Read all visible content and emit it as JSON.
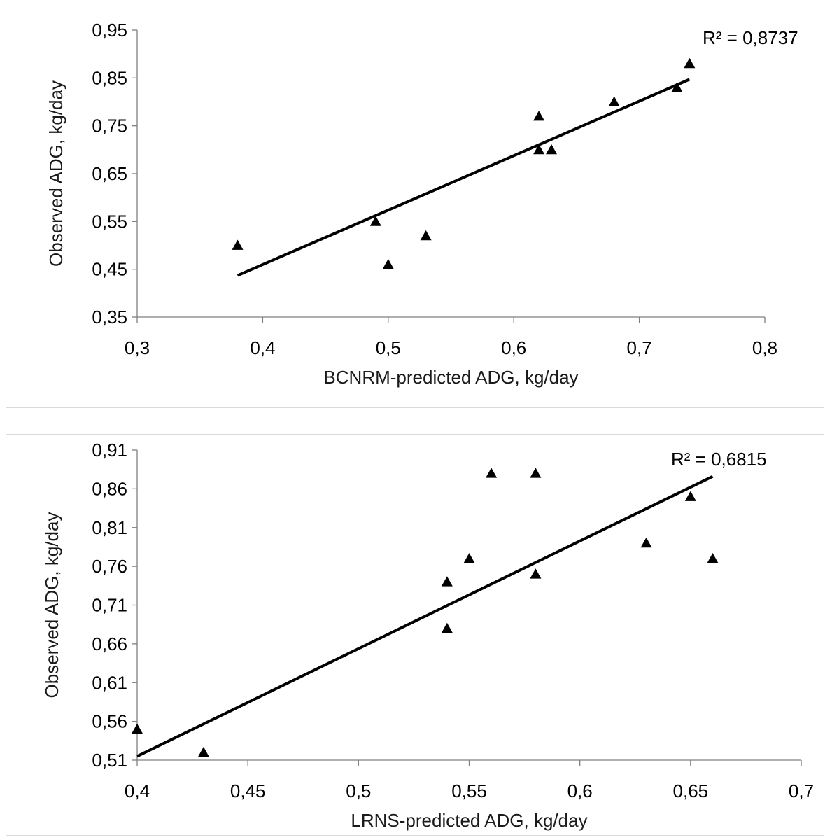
{
  "chart_data": [
    {
      "type": "scatter",
      "title": "",
      "xlabel": "BCNRM-predicted ADG, kg/day",
      "ylabel": "Observed ADG, kg/day",
      "xlim": [
        0.3,
        0.8
      ],
      "ylim": [
        0.35,
        0.95
      ],
      "xticks": [
        "0,3",
        "0,4",
        "0,5",
        "0,6",
        "0,7",
        "0,8"
      ],
      "yticks": [
        "0,35",
        "0,45",
        "0,55",
        "0,65",
        "0,75",
        "0,85",
        "0,95"
      ],
      "grid": false,
      "legend": "none",
      "marker": "triangle",
      "marker_color": "#000000",
      "points": [
        {
          "x": 0.38,
          "y": 0.5
        },
        {
          "x": 0.49,
          "y": 0.55
        },
        {
          "x": 0.5,
          "y": 0.46
        },
        {
          "x": 0.53,
          "y": 0.52
        },
        {
          "x": 0.62,
          "y": 0.77
        },
        {
          "x": 0.62,
          "y": 0.7
        },
        {
          "x": 0.63,
          "y": 0.7
        },
        {
          "x": 0.68,
          "y": 0.8
        },
        {
          "x": 0.73,
          "y": 0.83
        },
        {
          "x": 0.74,
          "y": 0.88
        }
      ],
      "trendline": {
        "x": [
          0.38,
          0.74
        ],
        "y": [
          0.437,
          0.847
        ]
      },
      "r2_text": "R² = 0,8737"
    },
    {
      "type": "scatter",
      "title": "",
      "xlabel": "LRNS-predicted ADG, kg/day",
      "ylabel": "Observed  ADG, kg/day",
      "xlim": [
        0.4,
        0.7
      ],
      "ylim": [
        0.51,
        0.91
      ],
      "xticks": [
        "0,4",
        "0,45",
        "0,5",
        "0,55",
        "0,6",
        "0,65",
        "0,7"
      ],
      "yticks": [
        "0,51",
        "0,56",
        "0,61",
        "0,66",
        "0,71",
        "0,76",
        "0,81",
        "0,86",
        "0,91"
      ],
      "grid": false,
      "legend": "none",
      "marker": "triangle",
      "marker_color": "#000000",
      "points": [
        {
          "x": 0.4,
          "y": 0.55
        },
        {
          "x": 0.43,
          "y": 0.52
        },
        {
          "x": 0.54,
          "y": 0.74
        },
        {
          "x": 0.54,
          "y": 0.68
        },
        {
          "x": 0.55,
          "y": 0.77
        },
        {
          "x": 0.56,
          "y": 0.88
        },
        {
          "x": 0.58,
          "y": 0.88
        },
        {
          "x": 0.58,
          "y": 0.75
        },
        {
          "x": 0.63,
          "y": 0.79
        },
        {
          "x": 0.65,
          "y": 0.85
        },
        {
          "x": 0.66,
          "y": 0.77
        }
      ],
      "trendline": {
        "x": [
          0.4,
          0.66
        ],
        "y": [
          0.515,
          0.876
        ]
      },
      "r2_text": "R² = 0,6815"
    }
  ]
}
